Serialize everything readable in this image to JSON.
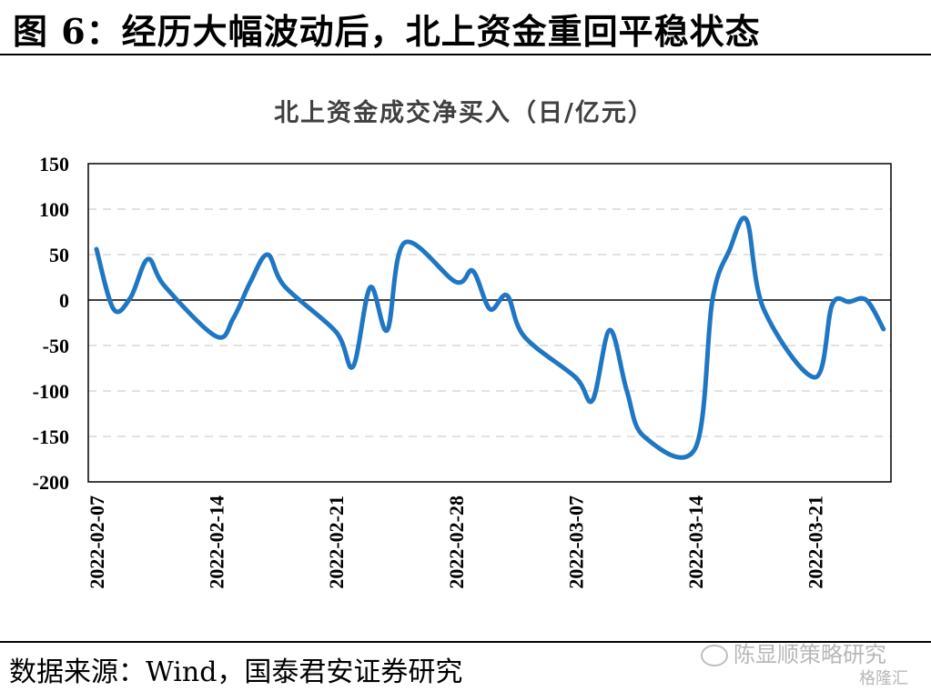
{
  "figure": {
    "title": "图 6：经历大幅波动后，北上资金重回平稳状态",
    "source": "数据来源：Wind，国泰君安证券研究",
    "watermark": "陈显顺策略研究",
    "watermark2": "格隆汇"
  },
  "chart_data": {
    "type": "line",
    "title": "北上资金成交净买入（日/亿元）",
    "xlabel": "",
    "ylabel": "",
    "ylim": [
      -200,
      150
    ],
    "yticks": [
      150,
      100,
      50,
      0,
      -50,
      -100,
      -150,
      -200
    ],
    "xtick_labels": [
      "2022-02-07",
      "2022-02-14",
      "2022-02-21",
      "2022-02-28",
      "2022-03-07",
      "2022-03-14",
      "2022-03-21"
    ],
    "grid": "horizontal dashed",
    "series": [
      {
        "color": "#1f77c4",
        "x": [
          "2022-02-07",
          "2022-02-08",
          "2022-02-09",
          "2022-02-10",
          "2022-02-11",
          "2022-02-14",
          "2022-02-15",
          "2022-02-16",
          "2022-02-17",
          "2022-02-18",
          "2022-02-21",
          "2022-02-22",
          "2022-02-23",
          "2022-02-24",
          "2022-02-25",
          "2022-02-28",
          "2022-03-01",
          "2022-03-02",
          "2022-03-03",
          "2022-03-04",
          "2022-03-07",
          "2022-03-08",
          "2022-03-09",
          "2022-03-10",
          "2022-03-11",
          "2022-03-14",
          "2022-03-15",
          "2022-03-16",
          "2022-03-17",
          "2022-03-18",
          "2022-03-21",
          "2022-03-22",
          "2022-03-23",
          "2022-03-24",
          "2022-03-25"
        ],
        "values": [
          56,
          -10,
          3,
          45,
          15,
          -40,
          -20,
          20,
          50,
          15,
          -35,
          -73,
          14,
          -33,
          63,
          20,
          32,
          -10,
          5,
          -40,
          -85,
          -110,
          -33,
          -100,
          -150,
          -163,
          0,
          55,
          88,
          -10,
          -85,
          -5,
          -2,
          0,
          -32
        ]
      }
    ]
  }
}
